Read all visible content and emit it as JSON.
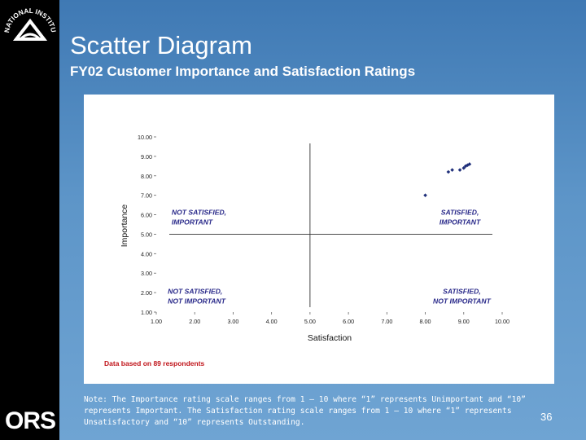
{
  "slide": {
    "title": "Scatter Diagram",
    "subtitle": "FY02 Customer Importance and Satisfaction Ratings",
    "note": "Note: The Importance rating scale ranges from 1 – 10 where “1” represents Unimportant and “10” represents Important. The Satisfaction rating scale ranges from 1 – 10 where “1” represents Unsatisfactory and “10” represents Outstanding.",
    "page_number": "36",
    "logos": {
      "nih": "NATIONAL INSTITUTES OF HEALTH",
      "ors": "ORS"
    }
  },
  "colors": {
    "background": "#5d95c8",
    "point": "#1f2f7a",
    "quadrant_label": "#2a2a8a",
    "footnote": "#c0141a"
  },
  "chart_data": {
    "type": "scatter",
    "xlabel": "Satisfaction",
    "ylabel": "Importance",
    "xlim": [
      1,
      10
    ],
    "ylim": [
      1,
      10
    ],
    "x_ticks": [
      "1.00",
      "2.00",
      "3.00",
      "4.00",
      "5.00",
      "6.00",
      "7.00",
      "8.00",
      "9.00",
      "10.00"
    ],
    "y_ticks": [
      "1.00",
      "2.00",
      "3.00",
      "4.00",
      "5.00",
      "6.00",
      "7.00",
      "8.00",
      "9.00",
      "10.00"
    ],
    "divider": {
      "x": 5.0,
      "y": 5.0
    },
    "quadrants": [
      {
        "line1": "NOT SATISFIED,",
        "line2": "IMPORTANT",
        "x": 1.4,
        "y": 6.0
      },
      {
        "line1": "SATISFIED,",
        "line2": "IMPORTANT",
        "x": 8.9,
        "y": 6.0
      },
      {
        "line1": "NOT SATISFIED,",
        "line2": "NOT IMPORTANT",
        "x": 1.3,
        "y": 1.95
      },
      {
        "line1": "SATISFIED,",
        "line2": "NOT IMPORTANT",
        "x": 8.95,
        "y": 1.95
      }
    ],
    "points": [
      {
        "x": 8.0,
        "y": 7.0
      },
      {
        "x": 8.6,
        "y": 8.2
      },
      {
        "x": 8.7,
        "y": 8.3
      },
      {
        "x": 8.9,
        "y": 8.3
      },
      {
        "x": 9.0,
        "y": 8.4
      },
      {
        "x": 9.05,
        "y": 8.5
      },
      {
        "x": 9.1,
        "y": 8.55
      },
      {
        "x": 9.15,
        "y": 8.6
      }
    ],
    "footnote": "Data based on 89 respondents"
  }
}
